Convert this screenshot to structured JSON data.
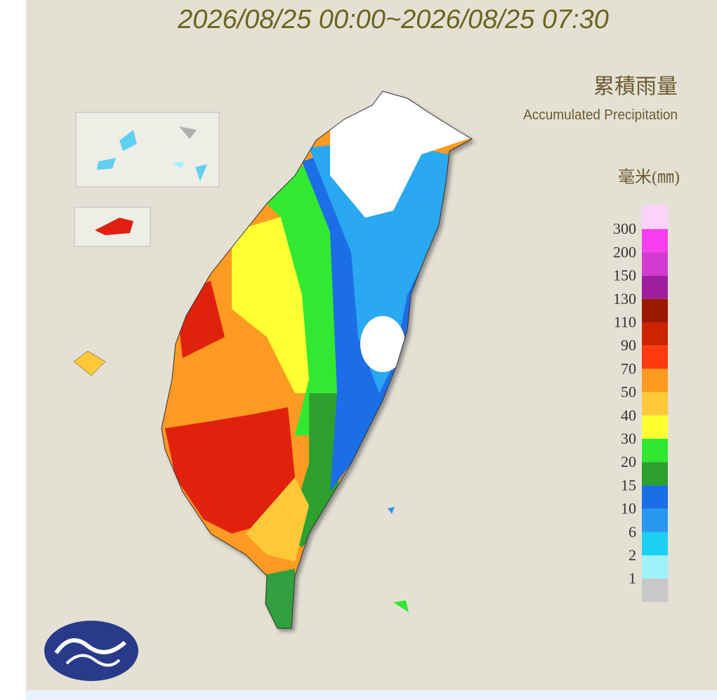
{
  "header": {
    "title": "2026/08/25 00:00~2026/08/25 07:30"
  },
  "legend": {
    "title_zh": "累積雨量",
    "title_en": "Accumulated Precipitation",
    "unit": "毫米(㎜)",
    "labels": [
      "300",
      "200",
      "150",
      "130",
      "110",
      "90",
      "70",
      "50",
      "40",
      "30",
      "20",
      "15",
      "10",
      "6",
      "2",
      "1"
    ],
    "colors": [
      "#fcd2fc",
      "#f83cf0",
      "#d23ad0",
      "#9e1f9e",
      "#9a1a00",
      "#cc2400",
      "#ff3a10",
      "#ff9a20",
      "#ffc838",
      "#ffff30",
      "#30e830",
      "#2ea02e",
      "#1a6ee6",
      "#2898f0",
      "#1ccef2",
      "#a0f2fa",
      "#c8c8c8"
    ]
  }
}
